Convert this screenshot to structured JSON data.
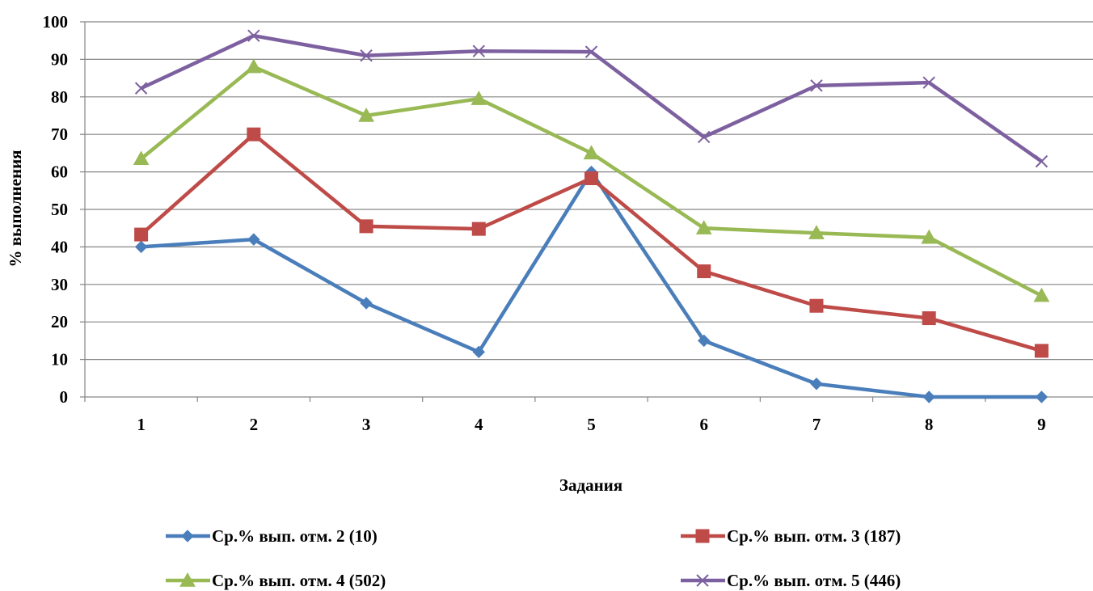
{
  "chart_data": {
    "type": "line",
    "xlabel": "Задания",
    "ylabel": "% выполнения",
    "categories": [
      "1",
      "2",
      "3",
      "4",
      "5",
      "6",
      "7",
      "8",
      "9"
    ],
    "ylim": [
      0,
      100
    ],
    "yticks": [
      0,
      10,
      20,
      30,
      40,
      50,
      60,
      70,
      80,
      90,
      100
    ],
    "grid": true,
    "legend_position": "bottom",
    "series": [
      {
        "name": "Ср.% вып. отм. 2 (10)",
        "color": "#4a7ebb",
        "marker": "diamond",
        "values": [
          40,
          42,
          25,
          12,
          60,
          15,
          3.5,
          0,
          0
        ]
      },
      {
        "name": "Ср.% вып. отм. 3 (187)",
        "color": "#be4b48",
        "marker": "square",
        "values": [
          43.3,
          70,
          45.5,
          44.8,
          58.3,
          33.5,
          24.3,
          21,
          12.3
        ]
      },
      {
        "name": "Ср.% вып. отм. 4 (502)",
        "color": "#98b954",
        "marker": "triangle",
        "values": [
          63.5,
          88,
          75,
          79.5,
          65,
          45,
          43.7,
          42.5,
          27
        ]
      },
      {
        "name": "Ср.% вып. отм. 5 (446)",
        "color": "#7d60a0",
        "marker": "x",
        "values": [
          82.3,
          96.3,
          91,
          92.2,
          92,
          69.3,
          83,
          83.8,
          62.8
        ]
      }
    ]
  }
}
